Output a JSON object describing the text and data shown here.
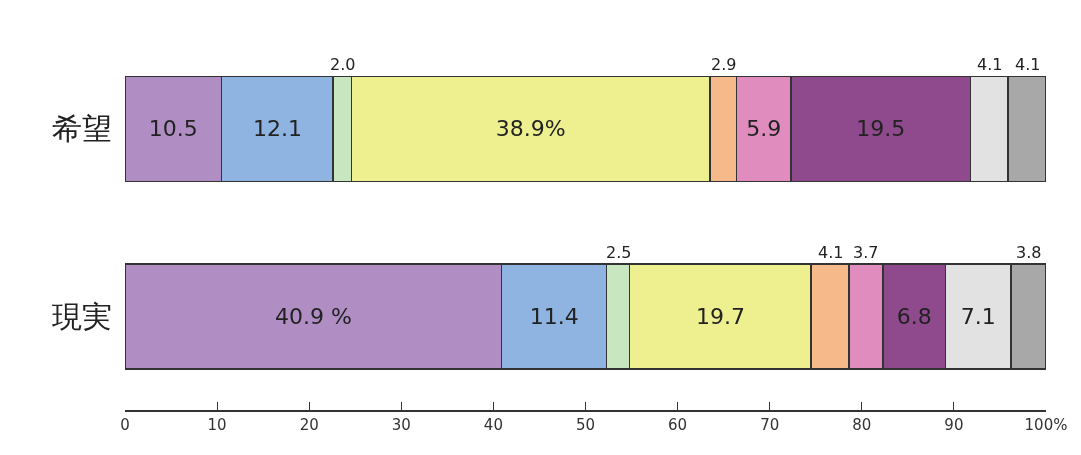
{
  "chart_data": {
    "type": "bar",
    "orientation": "horizontal",
    "stacked": true,
    "categories": [
      "希望",
      "現実"
    ],
    "series": [
      {
        "color": "#b08ec4",
        "values": [
          10.5,
          40.9
        ],
        "value_labels": [
          "10.5",
          "40.9 %"
        ]
      },
      {
        "color": "#8fb4e2",
        "values": [
          12.1,
          11.4
        ],
        "value_labels": [
          "12.1",
          "11.4"
        ]
      },
      {
        "color": "#c8e6c0",
        "values": [
          2.0,
          2.5
        ],
        "value_labels": [
          "2.0",
          "2.5"
        ]
      },
      {
        "color": "#eef090",
        "values": [
          38.9,
          19.7
        ],
        "value_labels": [
          "38.9%",
          "19.7"
        ]
      },
      {
        "color": "#f6b98a",
        "values": [
          2.9,
          4.1
        ],
        "value_labels": [
          "2.9",
          "4.1"
        ]
      },
      {
        "color": "#e08cbe",
        "values": [
          5.9,
          3.7
        ],
        "value_labels": [
          "5.9",
          "3.7"
        ]
      },
      {
        "color": "#8e4a8c",
        "values": [
          19.5,
          6.8
        ],
        "value_labels": [
          "19.5",
          "6.8"
        ]
      },
      {
        "color": "#e2e2e2",
        "values": [
          4.1,
          7.1
        ],
        "value_labels": [
          "4.1",
          "7.1"
        ]
      },
      {
        "color": "#a8a8a8",
        "values": [
          4.1,
          3.8
        ],
        "value_labels": [
          "4.1",
          "3.8"
        ]
      }
    ],
    "xlim": [
      0,
      100
    ],
    "xticks": [
      0,
      10,
      20,
      30,
      40,
      50,
      60,
      70,
      80,
      90,
      {
        "value": 100,
        "label": "100%"
      }
    ],
    "grid": false
  }
}
